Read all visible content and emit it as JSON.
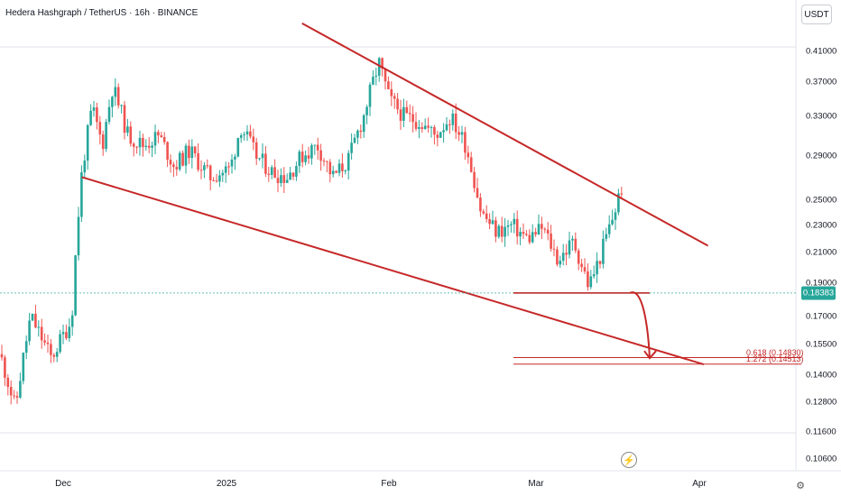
{
  "header": {
    "title": "Hedera Hashgraph / TetherUS · 16h · BINANCE",
    "unit_label": "USDT"
  },
  "current_price": "0.18383",
  "colors": {
    "up": "#26a69a",
    "down": "#ef5350",
    "trendline": "#c62828",
    "fib": "#c62828",
    "current_price_line": "#26a69a"
  },
  "icons": {
    "flash": "flash-icon",
    "settings": "settings-icon"
  },
  "chart_data": {
    "type": "candlestick",
    "title": "Hedera Hashgraph / TetherUS · 16h · BINANCE",
    "ylabel": "USDT",
    "y_scale": "log",
    "ylim": [
      0.104,
      0.425
    ],
    "y_ticks": [
      "0.41000",
      "0.37000",
      "0.33000",
      "0.29000",
      "0.25000",
      "0.23000",
      "0.21000",
      "0.19000",
      "0.17000",
      "0.15500",
      "0.14000",
      "0.12800",
      "0.11600",
      "0.10600"
    ],
    "x_ticks": [
      "Dec",
      "2025",
      "Feb",
      "Mar",
      "Apr"
    ],
    "x_range": [
      "2024-11-15",
      "2025-04-05"
    ],
    "close_series": [
      {
        "date": "2024-11-15",
        "close": 0.15
      },
      {
        "date": "2024-11-18",
        "close": 0.125
      },
      {
        "date": "2024-11-21",
        "close": 0.17
      },
      {
        "date": "2024-11-25",
        "close": 0.148
      },
      {
        "date": "2024-11-29",
        "close": 0.168
      },
      {
        "date": "2024-12-01",
        "close": 0.275
      },
      {
        "date": "2024-12-03",
        "close": 0.34
      },
      {
        "date": "2024-12-05",
        "close": 0.3
      },
      {
        "date": "2024-12-07",
        "close": 0.365
      },
      {
        "date": "2024-12-10",
        "close": 0.31
      },
      {
        "date": "2024-12-13",
        "close": 0.3
      },
      {
        "date": "2024-12-16",
        "close": 0.31
      },
      {
        "date": "2024-12-19",
        "close": 0.28
      },
      {
        "date": "2024-12-22",
        "close": 0.295
      },
      {
        "date": "2024-12-26",
        "close": 0.27
      },
      {
        "date": "2024-12-30",
        "close": 0.278
      },
      {
        "date": "2025-01-01",
        "close": 0.32
      },
      {
        "date": "2025-01-04",
        "close": 0.29
      },
      {
        "date": "2025-01-07",
        "close": 0.275
      },
      {
        "date": "2025-01-10",
        "close": 0.27
      },
      {
        "date": "2025-01-13",
        "close": 0.29
      },
      {
        "date": "2025-01-16",
        "close": 0.3
      },
      {
        "date": "2025-01-19",
        "close": 0.27
      },
      {
        "date": "2025-01-22",
        "close": 0.285
      },
      {
        "date": "2025-01-25",
        "close": 0.33
      },
      {
        "date": "2025-01-28",
        "close": 0.395
      },
      {
        "date": "2025-01-30",
        "close": 0.35
      },
      {
        "date": "2025-02-02",
        "close": 0.33
      },
      {
        "date": "2025-02-05",
        "close": 0.325
      },
      {
        "date": "2025-02-08",
        "close": 0.31
      },
      {
        "date": "2025-02-11",
        "close": 0.33
      },
      {
        "date": "2025-02-14",
        "close": 0.3
      },
      {
        "date": "2025-02-17",
        "close": 0.24
      },
      {
        "date": "2025-02-20",
        "close": 0.225
      },
      {
        "date": "2025-02-23",
        "close": 0.23
      },
      {
        "date": "2025-02-26",
        "close": 0.22
      },
      {
        "date": "2025-03-01",
        "close": 0.228
      },
      {
        "date": "2025-03-04",
        "close": 0.205
      },
      {
        "date": "2025-03-07",
        "close": 0.218
      },
      {
        "date": "2025-03-10",
        "close": 0.188
      },
      {
        "date": "2025-03-12",
        "close": 0.205
      },
      {
        "date": "2025-03-15",
        "close": 0.24
      },
      {
        "date": "2025-03-17",
        "close": 0.27
      },
      {
        "date": "2025-03-19",
        "close": 0.255
      },
      {
        "date": "2025-03-21",
        "close": 0.245
      },
      {
        "date": "2025-03-24",
        "close": 0.2
      },
      {
        "date": "2025-03-26",
        "close": 0.19
      },
      {
        "date": "2025-03-29",
        "close": 0.185
      },
      {
        "date": "2025-03-31",
        "close": 0.184
      }
    ],
    "annotations": {
      "upper_trendline": [
        {
          "date": "2025-01-13",
          "price": 0.45
        },
        {
          "date": "2025-03-18",
          "price": 0.287
        },
        {
          "date": "2025-03-28",
          "price": 0.215
        }
      ],
      "lower_trendline": [
        {
          "date": "2024-12-01",
          "price": 0.27
        },
        {
          "date": "2025-03-11",
          "price": 0.171
        },
        {
          "date": "2025-04-05",
          "price": 0.145
        }
      ],
      "support_line": {
        "price": 0.1838,
        "from": "2025-03-10",
        "to": "2025-04-02"
      },
      "projection_target": 0.148,
      "fib_levels": [
        {
          "label": "0.618 (0.14830)",
          "price": 0.1483
        },
        {
          "label": "1.272 (0.14513)",
          "price": 0.14513
        }
      ]
    }
  }
}
